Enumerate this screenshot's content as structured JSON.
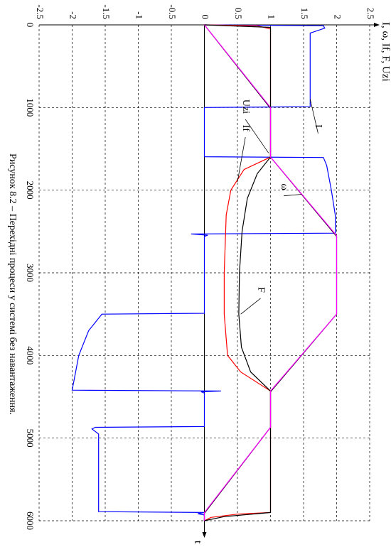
{
  "chart_data": {
    "type": "line",
    "x_label": "t",
    "y_label": "I, ω, If, F, Uzi",
    "caption": "Рисунок 8.2 – Перехідні процеси у системі без навантаження.",
    "xlim": [
      0,
      6000
    ],
    "xticks": [
      0,
      1000,
      2000,
      3000,
      4000,
      5000,
      6000
    ],
    "ylim": [
      -2.5,
      2.5
    ],
    "yticks": [
      -2.5,
      -2,
      -1.5,
      -1,
      -0.5,
      0,
      0.5,
      1,
      1.5,
      2,
      2.5
    ],
    "grid": true,
    "annotations": [
      "I",
      "Uzi",
      "If",
      "ω",
      "F"
    ],
    "series": [
      {
        "name": "I",
        "color": "#0000ff",
        "x": [
          0,
          10,
          40,
          100,
          990,
          1000,
          1595,
          1605,
          1700,
          2000,
          2300,
          2520,
          2530,
          2545,
          2560,
          3490,
          3500,
          3550,
          3700,
          4000,
          4420,
          4430,
          4440,
          4455,
          4860,
          4870,
          4890,
          4950,
          5890,
          5900,
          5915,
          5930,
          6000
        ],
        "values": [
          0,
          1.8,
          1.82,
          1.6,
          1.6,
          0,
          0,
          1.8,
          1.85,
          1.92,
          1.98,
          1.98,
          -0.2,
          0.05,
          0,
          0,
          -1.55,
          -1.6,
          -1.75,
          -1.9,
          -2,
          0.25,
          -0.05,
          0,
          0,
          -1.65,
          -1.7,
          -1.6,
          -1.6,
          0,
          -0.1,
          0,
          0
        ]
      },
      {
        "name": "If",
        "color": "#ff0000",
        "x": [
          0,
          10,
          50,
          1600,
          1750,
          2000,
          2300,
          3000,
          3500,
          4000,
          4200,
          4430,
          5900,
          5920,
          5960,
          6000
        ],
        "values": [
          0,
          0.8,
          1,
          1,
          0.6,
          0.4,
          0.33,
          0.3,
          0.3,
          0.35,
          0.55,
          1,
          1,
          0.5,
          0.1,
          0
        ]
      },
      {
        "name": "F",
        "color": "#000000",
        "x": [
          0,
          30,
          1600,
          1800,
          2100,
          2500,
          3000,
          3500,
          3900,
          4200,
          4430,
          5900,
          5950,
          6000
        ],
        "values": [
          0,
          1,
          1,
          0.8,
          0.65,
          0.57,
          0.53,
          0.52,
          0.56,
          0.7,
          1,
          1,
          0.3,
          0
        ]
      },
      {
        "name": "ω",
        "color": "#000000",
        "x": [
          0,
          1010,
          1600,
          2560,
          3500,
          4440,
          4870,
          5910,
          6000
        ],
        "values": [
          0,
          1,
          1,
          2,
          2,
          1,
          1,
          0,
          0
        ]
      },
      {
        "name": "Uzi",
        "color": "#ff00ff",
        "x": [
          0,
          1000,
          1600,
          2550,
          3500,
          4430,
          4870,
          5900,
          6000
        ],
        "values": [
          0,
          1,
          1,
          2,
          2,
          1,
          1,
          0,
          0
        ]
      }
    ]
  }
}
